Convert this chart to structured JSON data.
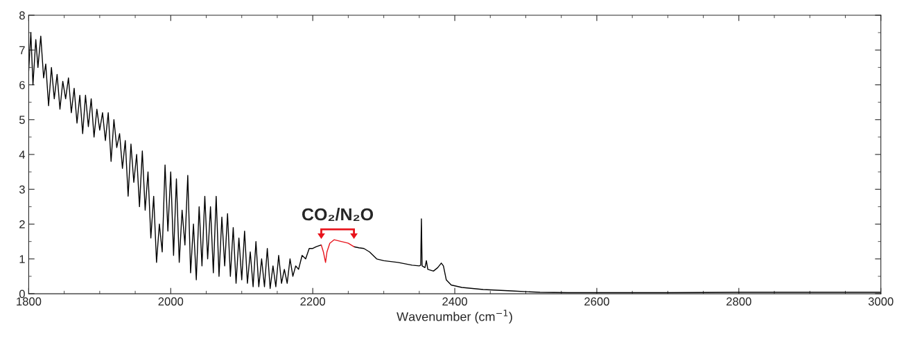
{
  "chart_data": {
    "type": "line",
    "xlabel": "Wavenumber (cm$^{−1}$)",
    "xlim": [
      1800,
      3000
    ],
    "xticks": [
      1800,
      2000,
      2200,
      2400,
      2600,
      2800,
      3000
    ],
    "ylim": [
      0,
      8
    ],
    "yticks": [
      0,
      1,
      2,
      3,
      4,
      5,
      6,
      7,
      8
    ],
    "grid": false,
    "annotations": [
      "CO₂/N₂O"
    ],
    "series": [
      {
        "color": "#000000",
        "x": [
          1800,
          1803,
          1806,
          1810,
          1813,
          1817,
          1821,
          1824,
          1828,
          1832,
          1836,
          1840,
          1844,
          1848,
          1852,
          1856,
          1860,
          1864,
          1868,
          1872,
          1876,
          1880,
          1884,
          1888,
          1892,
          1896,
          1900,
          1904,
          1908,
          1912,
          1916,
          1920,
          1924,
          1928,
          1932,
          1936,
          1940,
          1944,
          1948,
          1952,
          1956,
          1960,
          1964,
          1968,
          1972,
          1976,
          1980,
          1984,
          1988,
          1992,
          1996,
          2000,
          2004,
          2008,
          2012,
          2016,
          2020,
          2024,
          2028,
          2032,
          2036,
          2040,
          2044,
          2048,
          2052,
          2056,
          2060,
          2064,
          2068,
          2072,
          2076,
          2080,
          2084,
          2088,
          2092,
          2096,
          2100,
          2104,
          2108,
          2112,
          2116,
          2120,
          2124,
          2128,
          2132,
          2136,
          2140,
          2144,
          2148,
          2152,
          2156,
          2160,
          2164,
          2168,
          2172,
          2176,
          2180,
          2185,
          2190,
          2195,
          2200,
          2205,
          2212,
          null,
          2258,
          2265,
          2272,
          2280,
          2290,
          2300,
          2320,
          2340,
          2350,
          2352,
          2353,
          2354,
          2358,
          2360,
          2362,
          2370,
          2376,
          2381,
          2384,
          2388,
          2395,
          2410,
          2440,
          2480,
          2520,
          2560,
          2600,
          2700,
          2800,
          2900,
          3000
        ],
        "values": [
          6.4,
          7.5,
          6.0,
          7.3,
          6.5,
          7.4,
          6.2,
          6.6,
          5.4,
          6.5,
          5.6,
          6.3,
          5.3,
          6.1,
          5.6,
          6.2,
          5.2,
          5.9,
          4.9,
          5.7,
          4.6,
          5.7,
          4.8,
          5.6,
          4.5,
          5.3,
          4.7,
          5.2,
          4.4,
          5.2,
          3.8,
          5.0,
          4.2,
          4.6,
          3.6,
          4.4,
          2.8,
          4.3,
          3.2,
          4.0,
          2.5,
          4.1,
          2.4,
          3.5,
          1.6,
          2.8,
          0.9,
          2.0,
          1.2,
          3.7,
          1.8,
          3.5,
          1.1,
          3.3,
          0.9,
          2.4,
          1.4,
          3.4,
          0.6,
          2.0,
          0.4,
          2.5,
          0.8,
          2.8,
          1.0,
          2.5,
          0.6,
          2.8,
          0.5,
          2.2,
          0.8,
          2.3,
          0.5,
          1.9,
          0.3,
          1.6,
          0.4,
          1.8,
          0.3,
          1.2,
          0.2,
          1.5,
          0.2,
          1.0,
          0.2,
          1.3,
          0.15,
          0.8,
          0.2,
          1.1,
          0.3,
          0.7,
          0.3,
          1.0,
          0.5,
          0.8,
          0.7,
          1.1,
          1.0,
          1.3,
          1.3,
          1.35,
          1.4,
          null,
          1.35,
          1.32,
          1.3,
          1.2,
          1.0,
          0.95,
          0.9,
          0.82,
          0.8,
          0.82,
          2.15,
          0.8,
          0.75,
          0.95,
          0.7,
          0.65,
          0.75,
          0.88,
          0.8,
          0.4,
          0.25,
          0.18,
          0.12,
          0.08,
          0.04,
          0.03,
          0.03,
          0.03,
          0.04,
          0.04,
          0.04
        ]
      },
      {
        "color": "#e8141c",
        "x": [
          2212,
          2215,
          2218,
          2220,
          2224,
          2230,
          2240,
          2250,
          2258
        ],
        "values": [
          1.4,
          1.2,
          0.9,
          1.2,
          1.45,
          1.55,
          1.5,
          1.45,
          1.35
        ]
      }
    ]
  }
}
